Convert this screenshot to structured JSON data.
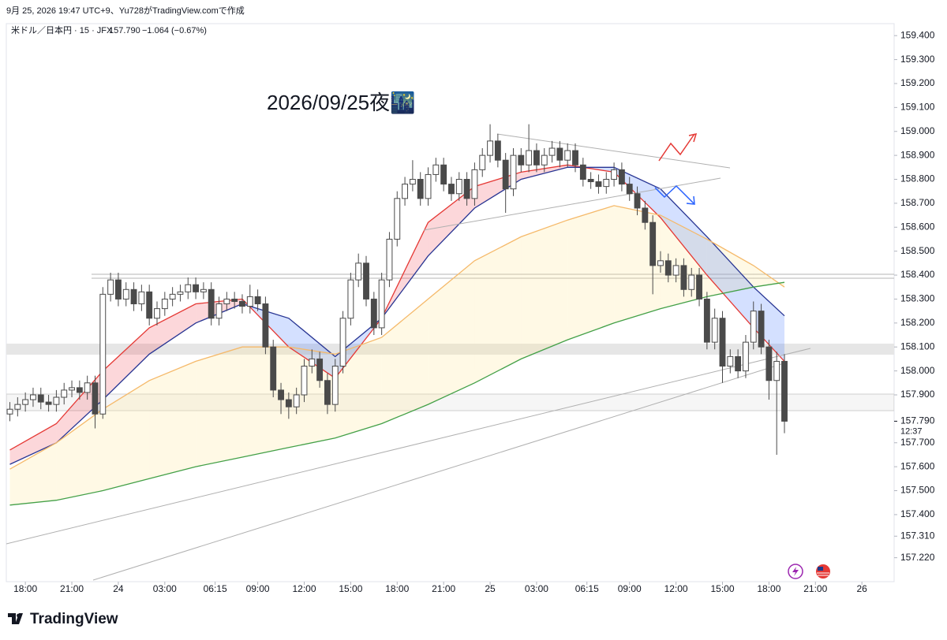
{
  "header": {
    "credit": "9月 25, 2026 19:47 UTC+9、Yu728がTradingView.comで作成"
  },
  "footer": {
    "logo": "TradingView"
  },
  "chart_data": {
    "type": "candlestick",
    "symbol": "米ドル／日本円 · 15 · JFX",
    "legend_last": "157.790",
    "legend_change": "−1.064 (−0.67%)",
    "annotation": "2026/09/25夜🌃",
    "last_price": {
      "value": 157.79,
      "label": "157.790"
    },
    "countdown": "12:37",
    "up_color": "#ffffff",
    "down_color": "#4a4a4a",
    "wick_color": "#4a4a4a",
    "xlim": [
      -7.23,
      50.08
    ],
    "ylim": [
      157.12,
      159.45
    ],
    "grid": false,
    "xticks": [
      {
        "value": -6,
        "label": "18:00"
      },
      {
        "value": -3,
        "label": "21:00"
      },
      {
        "value": 0,
        "label": "24"
      },
      {
        "value": 3,
        "label": "03:00"
      },
      {
        "value": 6.25,
        "label": "06:15"
      },
      {
        "value": 9,
        "label": "09:00"
      },
      {
        "value": 12,
        "label": "12:00"
      },
      {
        "value": 15,
        "label": "15:00"
      },
      {
        "value": 18,
        "label": "18:00"
      },
      {
        "value": 21,
        "label": "21:00"
      },
      {
        "value": 24,
        "label": "25"
      },
      {
        "value": 27,
        "label": "03:00"
      },
      {
        "value": 30.25,
        "label": "06:15"
      },
      {
        "value": 33,
        "label": "09:00"
      },
      {
        "value": 36,
        "label": "12:00"
      },
      {
        "value": 39,
        "label": "15:00"
      },
      {
        "value": 42,
        "label": "18:00"
      },
      {
        "value": 45,
        "label": "21:00"
      },
      {
        "value": 48,
        "label": "26"
      }
    ],
    "yticks": [
      {
        "value": 159.4,
        "label": "159.400"
      },
      {
        "value": 159.3,
        "label": "159.300"
      },
      {
        "value": 159.2,
        "label": "159.200"
      },
      {
        "value": 159.1,
        "label": "159.100"
      },
      {
        "value": 159.0,
        "label": "159.000"
      },
      {
        "value": 158.9,
        "label": "158.900"
      },
      {
        "value": 158.8,
        "label": "158.800"
      },
      {
        "value": 158.7,
        "label": "158.700"
      },
      {
        "value": 158.6,
        "label": "158.600"
      },
      {
        "value": 158.5,
        "label": "158.500"
      },
      {
        "value": 158.4,
        "label": "158.400"
      },
      {
        "value": 158.3,
        "label": "158.300"
      },
      {
        "value": 158.2,
        "label": "158.200"
      },
      {
        "value": 158.1,
        "label": "158.100"
      },
      {
        "value": 158.0,
        "label": "158.000"
      },
      {
        "value": 157.9,
        "label": "157.900"
      },
      {
        "value": 157.7,
        "label": "157.700"
      },
      {
        "value": 157.6,
        "label": "157.600"
      },
      {
        "value": 157.5,
        "label": "157.500"
      },
      {
        "value": 157.4,
        "label": "157.400"
      },
      {
        "value": 157.31,
        "label": "157.310"
      },
      {
        "value": 157.22,
        "label": "157.220"
      }
    ],
    "x": [
      -7,
      -6.5,
      -6,
      -5.5,
      -5,
      -4.5,
      -4,
      -3.5,
      -3,
      -2.5,
      -2,
      -1.5,
      -1,
      -0.5,
      0,
      0.5,
      1,
      1.5,
      2,
      2.5,
      3,
      3.5,
      4,
      4.5,
      5,
      5.5,
      6,
      6.5,
      7,
      7.5,
      8,
      8.5,
      9,
      9.5,
      10,
      10.5,
      11,
      11.5,
      12,
      12.5,
      13,
      13.5,
      14,
      14.5,
      15,
      15.5,
      16,
      16.5,
      17,
      17.5,
      18,
      18.5,
      19,
      19.5,
      20,
      20.5,
      21,
      21.5,
      22,
      22.5,
      23,
      23.5,
      24,
      24.5,
      25,
      25.5,
      26,
      26.5,
      27,
      27.5,
      28,
      28.5,
      29,
      29.5,
      30,
      30.5,
      31,
      31.5,
      32,
      32.5,
      33,
      33.5,
      34,
      34.5,
      35,
      35.5,
      36,
      36.5,
      37,
      37.5,
      38,
      38.5,
      39,
      39.5,
      40,
      40.5,
      41,
      41.5,
      42,
      42.5,
      43
    ],
    "open": [
      157.82,
      157.84,
      157.86,
      157.88,
      157.9,
      157.87,
      157.86,
      157.89,
      157.92,
      157.93,
      157.91,
      157.95,
      157.82,
      158.32,
      158.38,
      158.3,
      158.34,
      158.28,
      158.33,
      158.22,
      158.26,
      158.3,
      158.32,
      158.33,
      158.36,
      158.33,
      158.34,
      158.22,
      158.28,
      158.3,
      158.29,
      158.27,
      158.31,
      158.28,
      158.1,
      157.92,
      157.88,
      157.85,
      157.9,
      158.02,
      158.05,
      157.96,
      157.86,
      158.02,
      158.22,
      158.38,
      158.45,
      158.3,
      158.18,
      158.38,
      158.55,
      158.72,
      158.78,
      158.8,
      158.72,
      158.82,
      158.86,
      158.78,
      158.74,
      158.8,
      158.72,
      158.84,
      158.9,
      158.96,
      158.88,
      158.76,
      158.9,
      158.86,
      158.92,
      158.86,
      158.9,
      158.93,
      158.88,
      158.92,
      158.86,
      158.8,
      158.79,
      158.77,
      158.8,
      158.84,
      158.78,
      158.74,
      158.68,
      158.62,
      158.44,
      158.46,
      158.4,
      158.44,
      158.34,
      158.4,
      158.3,
      158.12,
      158.22,
      158.02,
      158.06,
      158.0,
      158.12,
      158.25,
      158.1,
      157.96,
      158.04
    ],
    "high": [
      157.87,
      157.89,
      157.91,
      157.93,
      157.93,
      157.9,
      157.92,
      157.95,
      157.96,
      157.96,
      157.98,
      157.98,
      158.35,
      158.41,
      158.41,
      158.37,
      158.37,
      158.36,
      158.36,
      158.29,
      158.33,
      158.35,
      158.36,
      158.39,
      158.39,
      158.37,
      158.37,
      158.31,
      158.33,
      158.33,
      158.32,
      158.36,
      158.34,
      158.31,
      158.13,
      157.95,
      157.91,
      157.93,
      158.05,
      158.09,
      158.08,
      157.99,
      158.05,
      158.25,
      158.41,
      158.49,
      158.48,
      158.33,
      158.41,
      158.58,
      158.75,
      158.81,
      158.88,
      158.83,
      158.85,
      158.89,
      158.89,
      158.81,
      158.83,
      158.83,
      158.87,
      158.93,
      159.03,
      158.99,
      158.91,
      158.93,
      158.93,
      159.03,
      158.95,
      158.93,
      158.96,
      158.96,
      158.95,
      158.95,
      158.89,
      158.83,
      158.82,
      158.83,
      158.87,
      158.87,
      158.81,
      158.77,
      158.71,
      158.65,
      158.5,
      158.49,
      158.47,
      158.47,
      158.43,
      158.43,
      158.33,
      158.26,
      158.25,
      158.09,
      158.09,
      158.15,
      158.29,
      158.28,
      158.13,
      158.08,
      158.07
    ],
    "low": [
      157.79,
      157.81,
      157.83,
      157.85,
      157.84,
      157.83,
      157.83,
      157.86,
      157.89,
      157.88,
      157.88,
      157.76,
      157.8,
      158.29,
      158.27,
      158.27,
      158.25,
      158.25,
      158.19,
      158.19,
      158.23,
      158.27,
      158.29,
      158.3,
      158.3,
      158.3,
      158.19,
      158.19,
      158.25,
      158.26,
      158.24,
      158.24,
      158.25,
      158.07,
      157.89,
      157.82,
      157.8,
      157.82,
      157.87,
      157.99,
      157.93,
      157.82,
      157.83,
      157.99,
      158.19,
      158.35,
      158.27,
      158.15,
      158.15,
      158.35,
      158.52,
      158.69,
      158.75,
      158.69,
      158.69,
      158.79,
      158.75,
      158.71,
      158.71,
      158.69,
      158.69,
      158.81,
      158.87,
      158.85,
      158.66,
      158.73,
      158.83,
      158.83,
      158.83,
      158.83,
      158.87,
      158.85,
      158.85,
      158.83,
      158.77,
      158.76,
      158.74,
      158.74,
      158.77,
      158.75,
      158.71,
      158.65,
      158.59,
      158.32,
      158.41,
      158.37,
      158.37,
      158.31,
      158.31,
      158.27,
      158.09,
      158.09,
      157.95,
      157.99,
      157.97,
      157.97,
      158.09,
      158.07,
      157.88,
      157.65,
      157.74
    ],
    "close": [
      157.84,
      157.86,
      157.88,
      157.9,
      157.87,
      157.86,
      157.89,
      157.92,
      157.93,
      157.91,
      157.95,
      157.82,
      158.32,
      158.38,
      158.3,
      158.34,
      158.28,
      158.33,
      158.22,
      158.26,
      158.3,
      158.32,
      158.33,
      158.36,
      158.33,
      158.34,
      158.22,
      158.28,
      158.3,
      158.29,
      158.27,
      158.31,
      158.28,
      158.1,
      157.92,
      157.88,
      157.85,
      157.9,
      158.02,
      158.05,
      157.96,
      157.86,
      158.02,
      158.22,
      158.38,
      158.45,
      158.3,
      158.18,
      158.38,
      158.55,
      158.72,
      158.78,
      158.8,
      158.72,
      158.82,
      158.86,
      158.78,
      158.74,
      158.8,
      158.72,
      158.84,
      158.9,
      158.96,
      158.88,
      158.76,
      158.9,
      158.86,
      158.92,
      158.86,
      158.9,
      158.93,
      158.88,
      158.92,
      158.86,
      158.8,
      158.79,
      158.77,
      158.8,
      158.84,
      158.78,
      158.74,
      158.68,
      158.62,
      158.44,
      158.46,
      158.4,
      158.44,
      158.34,
      158.4,
      158.3,
      158.12,
      158.22,
      158.02,
      158.06,
      158.0,
      158.12,
      158.25,
      158.1,
      157.96,
      158.04,
      157.79
    ],
    "overlay_x": [
      -7,
      -4,
      -1,
      2,
      5,
      8,
      11,
      14,
      17,
      20,
      23,
      26,
      29,
      32,
      35,
      38,
      41,
      43
    ],
    "overlays": [
      {
        "color": "#e53935",
        "values": [
          157.67,
          157.78,
          158.0,
          158.18,
          158.28,
          158.3,
          158.1,
          157.97,
          158.22,
          158.62,
          158.77,
          158.83,
          158.86,
          158.83,
          158.64,
          158.4,
          158.18,
          158.04
        ]
      },
      {
        "color": "#283593",
        "values": [
          157.61,
          157.7,
          157.88,
          158.07,
          158.2,
          158.28,
          158.22,
          158.06,
          158.22,
          158.48,
          158.68,
          158.8,
          158.85,
          158.85,
          158.76,
          158.56,
          158.35,
          158.23
        ]
      },
      {
        "color": "#f5b96a",
        "values": [
          157.59,
          157.7,
          157.84,
          157.96,
          158.04,
          158.1,
          158.1,
          158.07,
          158.14,
          158.3,
          158.46,
          158.56,
          158.63,
          158.69,
          158.65,
          158.55,
          158.44,
          158.35
        ]
      },
      {
        "color": "#43a047",
        "values": [
          157.44,
          157.46,
          157.5,
          157.55,
          157.6,
          157.64,
          157.68,
          157.72,
          157.78,
          157.86,
          157.95,
          158.05,
          158.13,
          158.2,
          158.26,
          158.31,
          158.35,
          158.37
        ]
      }
    ],
    "cloud": {
      "above": "rgba(242,54,69,0.2)",
      "below": "rgba(41,98,255,0.2)"
    },
    "band_fill": "rgba(255,232,150,0.25)"
  }
}
